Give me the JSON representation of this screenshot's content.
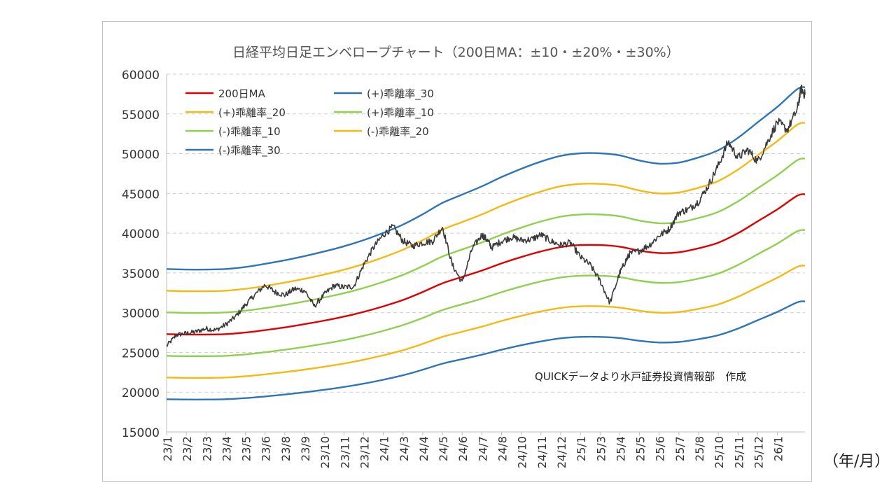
{
  "chart_data": {
    "type": "line",
    "title": "日経平均日足エンベロープチャート（200日MA：±10・±20%・±30%）",
    "annotation": "QUICKデータより水戸証券投資情報部　作成",
    "x_unit_label": "（年/月）",
    "ylim": [
      15000,
      60000
    ],
    "y_ticks": [
      "15000",
      "20000",
      "25000",
      "30000",
      "35000",
      "40000",
      "45000",
      "50000",
      "55000",
      "60000"
    ],
    "x_tick_labels": [
      "23/1",
      "23/2",
      "23/3",
      "23/4",
      "23/5",
      "23/6",
      "23/8",
      "23/9",
      "23/10",
      "23/11",
      "23/12",
      "24/1",
      "24/3",
      "24/4",
      "24/5",
      "24/6",
      "24/7",
      "24/8",
      "24/10",
      "24/11",
      "24/12",
      "25/1",
      "25/3",
      "25/4",
      "25/5",
      "25/6",
      "25/7",
      "25/8",
      "25/10",
      "25/11",
      "25/12",
      "26/1"
    ],
    "grid": "horizontal-dashed",
    "legend_position": "top-left",
    "ma_x": [
      0,
      1,
      2,
      3,
      4,
      5,
      6,
      7,
      8,
      9,
      10,
      11,
      12,
      13,
      14,
      15,
      16,
      17,
      18,
      19,
      20,
      21,
      22,
      23,
      24,
      25,
      26,
      27,
      28,
      29,
      30,
      31,
      32,
      32.4
    ],
    "ma_values": [
      27300,
      27250,
      27250,
      27300,
      27500,
      27800,
      28150,
      28550,
      29000,
      29500,
      30100,
      30800,
      31600,
      32600,
      33700,
      34500,
      35300,
      36200,
      37000,
      37700,
      38250,
      38500,
      38500,
      38300,
      37800,
      37500,
      37600,
      38100,
      38800,
      40000,
      41500,
      43000,
      44700,
      44900
    ],
    "envelopes": [
      {
        "name": "(+)乖離率_30",
        "factor": 1.3,
        "color": "#2e75b6"
      },
      {
        "name": "(+)乖離率_20",
        "factor": 1.2,
        "color": "#f5b914"
      },
      {
        "name": "(+)乖離率_10",
        "factor": 1.1,
        "color": "#8fd14f"
      },
      {
        "name": "(-)乖離率_10",
        "factor": 0.9,
        "color": "#8fd14f"
      },
      {
        "name": "(-)乖離率_20",
        "factor": 0.8,
        "color": "#f5b914"
      },
      {
        "name": "(-)乖離率_30",
        "factor": 0.7,
        "color": "#2e75b6"
      }
    ],
    "ma_color": "#e00000",
    "price_color": "#3a3a3a",
    "price_x": [
      0,
      0.5,
      1,
      1.5,
      2,
      2.5,
      3,
      3.5,
      4,
      4.5,
      5,
      5.5,
      6,
      6.5,
      7,
      7.5,
      8,
      8.5,
      9,
      9.5,
      10,
      10.5,
      11,
      11.5,
      12,
      12.5,
      13,
      13.5,
      14,
      14.5,
      15,
      15.5,
      16,
      16.25,
      16.5,
      17,
      17.5,
      18,
      18.5,
      19,
      19.5,
      20,
      20.5,
      21,
      21.5,
      22,
      22.5,
      23,
      23.3,
      23.5,
      24,
      24.5,
      25,
      25.5,
      26,
      26.5,
      27,
      27.5,
      28,
      28.5,
      29,
      29.5,
      30,
      30.5,
      31,
      31.5,
      32,
      32.2,
      32.4
    ],
    "price_values": [
      25800,
      27200,
      27400,
      27600,
      28000,
      27800,
      28500,
      29500,
      31000,
      32300,
      33500,
      32600,
      32200,
      33000,
      32800,
      30800,
      32300,
      33400,
      33200,
      33300,
      36000,
      38200,
      39800,
      40800,
      39000,
      38400,
      38800,
      39000,
      40800,
      36000,
      33800,
      38000,
      39800,
      39200,
      38200,
      39000,
      39500,
      39100,
      39200,
      39800,
      39000,
      38500,
      38800,
      37000,
      36000,
      34000,
      31200,
      35000,
      36500,
      37400,
      37800,
      38500,
      39700,
      40500,
      42600,
      43000,
      44000,
      46000,
      48500,
      51500,
      49500,
      50500,
      49000,
      51500,
      54000,
      53000,
      55500,
      58200,
      57400
    ],
    "legend": [
      {
        "label": "200日MA",
        "color": "#e00000"
      },
      {
        "label": "(+)乖離率_30",
        "color": "#2e75b6"
      },
      {
        "label": "(+)乖離率_20",
        "color": "#f5b914"
      },
      {
        "label": "(+)乖離率_10",
        "color": "#8fd14f"
      },
      {
        "label": "(-)乖離率_10",
        "color": "#8fd14f"
      },
      {
        "label": "(-)乖離率_20",
        "color": "#f5b914"
      },
      {
        "label": "(-)乖離率_30",
        "color": "#2e75b6"
      }
    ]
  }
}
